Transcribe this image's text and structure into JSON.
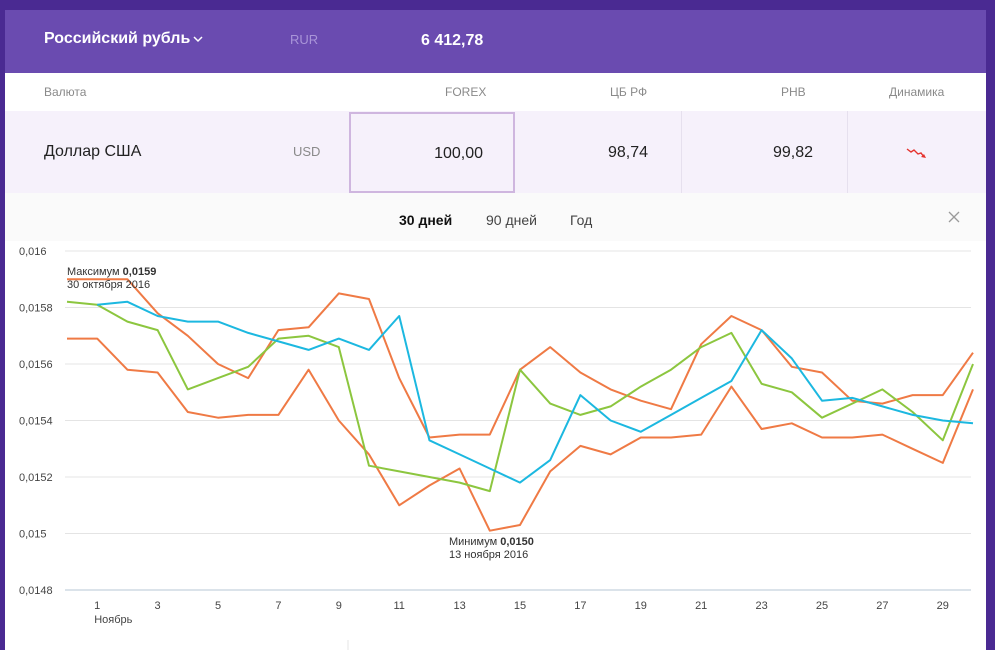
{
  "header": {
    "currency_title": "Российский рубль",
    "currency_code": "RUR",
    "amount": "6 412,78"
  },
  "table": {
    "columns": {
      "currency": "Валюта",
      "forex": "FOREX",
      "cb": "ЦБ РФ",
      "rnv": "РНВ",
      "dynamics": "Динамика"
    },
    "row": {
      "name": "Доллар США",
      "code": "USD",
      "forex": "100,00",
      "cb": "98,74",
      "rnv": "99,82",
      "dynamics_direction": "down"
    }
  },
  "tabs": [
    {
      "label": "30 дней",
      "active": true
    },
    {
      "label": "90 дней",
      "active": false
    },
    {
      "label": "Год",
      "active": false
    }
  ],
  "colors": {
    "accent": "#6a4bb0",
    "orange": "#ef7a45",
    "green": "#8cc63f",
    "cyan": "#1cb8e0",
    "trend_down": "#e5322d"
  },
  "chart_data": {
    "type": "line",
    "ylim": [
      0.0148,
      0.016
    ],
    "y_ticks": [
      {
        "value": 0.016,
        "label": "0,016"
      },
      {
        "value": 0.0158,
        "label": "0,0158"
      },
      {
        "value": 0.0156,
        "label": "0,0156"
      },
      {
        "value": 0.0154,
        "label": "0,0154"
      },
      {
        "value": 0.0152,
        "label": "0,0152"
      },
      {
        "value": 0.015,
        "label": "0,015"
      },
      {
        "value": 0.0148,
        "label": "0,0148"
      }
    ],
    "x": [
      0,
      1,
      2,
      3,
      4,
      5,
      6,
      7,
      8,
      9,
      10,
      11,
      12,
      13,
      14,
      15,
      16,
      17,
      18,
      19,
      20,
      21,
      22,
      23,
      24,
      25,
      26,
      27,
      28,
      29,
      30
    ],
    "x_ticks": [
      {
        "x": 1,
        "label": "1"
      },
      {
        "x": 3,
        "label": "3"
      },
      {
        "x": 5,
        "label": "5"
      },
      {
        "x": 7,
        "label": "7"
      },
      {
        "x": 9,
        "label": "9"
      },
      {
        "x": 11,
        "label": "11"
      },
      {
        "x": 13,
        "label": "13"
      },
      {
        "x": 15,
        "label": "15"
      },
      {
        "x": 17,
        "label": "17"
      },
      {
        "x": 19,
        "label": "19"
      },
      {
        "x": 21,
        "label": "21"
      },
      {
        "x": 23,
        "label": "23"
      },
      {
        "x": 25,
        "label": "25"
      },
      {
        "x": 27,
        "label": "27"
      },
      {
        "x": 29,
        "label": "29"
      }
    ],
    "month_label": "Ноябрь",
    "series": [
      {
        "name": "forex",
        "color": "#ef7a45",
        "values": [
          0.0159,
          0.0159,
          0.0159,
          0.01578,
          0.0157,
          0.0156,
          0.01555,
          0.01572,
          0.01573,
          0.01585,
          0.01583,
          0.01555,
          0.01534,
          0.01535,
          0.01535,
          0.01558,
          0.01566,
          0.01557,
          0.01551,
          0.01547,
          0.01544,
          0.01567,
          0.01577,
          0.01572,
          0.01559,
          0.01557,
          0.01547,
          0.01546,
          0.01549,
          0.01549,
          0.01564
        ]
      },
      {
        "name": "cb",
        "color": "#ef7a45",
        "values": [
          0.01569,
          0.01569,
          0.01558,
          0.01557,
          0.01543,
          0.01541,
          0.01542,
          0.01542,
          0.01558,
          0.0154,
          0.01528,
          0.0151,
          0.01517,
          0.01523,
          0.01501,
          0.01503,
          0.01522,
          0.01531,
          0.01528,
          0.01534,
          0.01534,
          0.01535,
          0.01552,
          0.01537,
          0.01539,
          0.01534,
          0.01534,
          0.01535,
          0.0153,
          0.01525,
          0.01551
        ]
      },
      {
        "name": "rnv",
        "color": "#8cc63f",
        "values": [
          0.01582,
          0.01581,
          0.01575,
          0.01572,
          0.01551,
          0.01555,
          0.01559,
          0.01569,
          0.0157,
          0.01566,
          0.01524,
          0.01522,
          0.0152,
          0.01518,
          0.01515,
          0.01558,
          0.01546,
          0.01542,
          0.01545,
          0.01552,
          0.01558,
          0.01566,
          0.01571,
          0.01553,
          0.0155,
          0.01541,
          0.01546,
          0.01551,
          0.01543,
          0.01533,
          0.0156
        ]
      },
      {
        "name": "avg",
        "color": "#1cb8e0",
        "values": [
          null,
          0.01581,
          0.01582,
          0.01577,
          0.01575,
          0.01575,
          0.01571,
          0.01568,
          0.01565,
          0.01569,
          0.01565,
          0.01577,
          0.01533,
          0.01528,
          0.01523,
          0.01518,
          0.01526,
          0.01549,
          0.0154,
          0.01536,
          0.01542,
          0.01548,
          0.01554,
          0.01572,
          0.01562,
          0.01547,
          0.01548,
          0.01545,
          0.01542,
          0.0154,
          0.01539
        ]
      }
    ],
    "annotations": [
      {
        "prefix": "Максимум ",
        "value": "0,0159",
        "date": "30 октября 2016",
        "x": 0,
        "y": 0.0159,
        "anchor": "above"
      },
      {
        "prefix": "Минимум ",
        "value": "0,0150",
        "date": "13 ноября 2016",
        "x": 14,
        "y": 0.01501,
        "anchor": "below"
      }
    ]
  }
}
